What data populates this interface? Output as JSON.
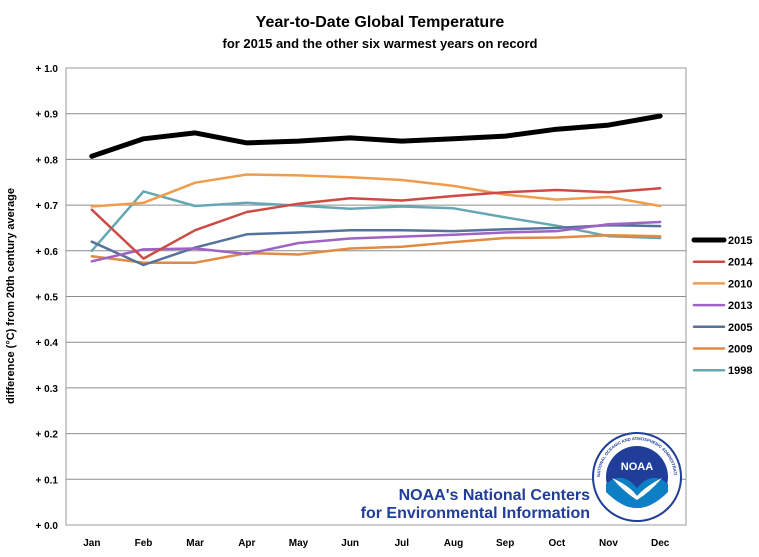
{
  "chart_data": {
    "type": "line",
    "title": "Year-to-Date Global Temperature",
    "subtitle": "for 2015 and the other six warmest years on record",
    "xlabel": "",
    "ylabel": "difference (°C)  from 20th century average",
    "categories": [
      "Jan",
      "Feb",
      "Mar",
      "Apr",
      "May",
      "Jun",
      "Jul",
      "Aug",
      "Sep",
      "Oct",
      "Nov",
      "Dec"
    ],
    "ylim": [
      0.0,
      1.0
    ],
    "yticks": [
      0.0,
      0.1,
      0.2,
      0.3,
      0.4,
      0.5,
      0.6,
      0.7,
      0.8,
      0.9,
      1.0
    ],
    "ytick_labels": [
      "+ 0.0",
      "+ 0.1",
      "+ 0.2",
      "+ 0.3",
      "+ 0.4",
      "+ 0.5",
      "+ 0.6",
      "+ 0.7",
      "+ 0.8",
      "+ 0.9",
      "+ 1.0"
    ],
    "grid": true,
    "legend_position": "right",
    "series": [
      {
        "name": "2015",
        "color": "#000000",
        "values": [
          0.807,
          0.845,
          0.858,
          0.836,
          0.84,
          0.847,
          0.84,
          0.845,
          0.851,
          0.866,
          0.875,
          0.895
        ]
      },
      {
        "name": "2014",
        "color": "#cc4b45",
        "values": [
          0.69,
          0.583,
          0.645,
          0.685,
          0.703,
          0.715,
          0.71,
          0.72,
          0.728,
          0.733,
          0.728,
          0.737
        ]
      },
      {
        "name": "2010",
        "color": "#ef9d4d",
        "values": [
          0.697,
          0.705,
          0.749,
          0.767,
          0.765,
          0.761,
          0.755,
          0.742,
          0.723,
          0.712,
          0.718,
          0.698
        ]
      },
      {
        "name": "2013",
        "color": "#9e63c4",
        "values": [
          0.577,
          0.603,
          0.605,
          0.593,
          0.617,
          0.627,
          0.631,
          0.635,
          0.64,
          0.643,
          0.658,
          0.663
        ]
      },
      {
        "name": "2005",
        "color": "#56729c",
        "values": [
          0.62,
          0.569,
          0.607,
          0.636,
          0.64,
          0.645,
          0.645,
          0.643,
          0.647,
          0.65,
          0.656,
          0.654
        ]
      },
      {
        "name": "2009",
        "color": "#e08a43",
        "values": [
          0.588,
          0.574,
          0.574,
          0.595,
          0.592,
          0.605,
          0.609,
          0.619,
          0.628,
          0.629,
          0.634,
          0.632
        ]
      },
      {
        "name": "1998",
        "color": "#65a8b4",
        "values": [
          0.6,
          0.73,
          0.698,
          0.705,
          0.699,
          0.692,
          0.697,
          0.693,
          0.673,
          0.655,
          0.632,
          0.628
        ]
      }
    ]
  },
  "credit": {
    "line1": "NOAA's National Centers",
    "line2": "for Environmental Information",
    "logo_text": "NOAA",
    "logo_ring_text": "NATIONAL OCEANIC AND ATMOSPHERIC ADMINISTRATION · U.S. DEPARTMENT OF COMMERCE"
  }
}
